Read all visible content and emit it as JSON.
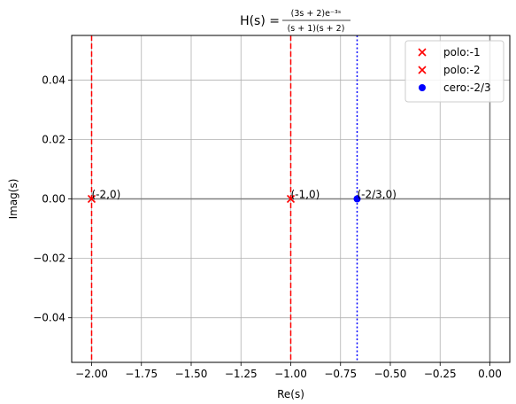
{
  "chart_data": {
    "type": "scatter",
    "title_prefix": "H(s) = ",
    "title_numerator": "(3s + 2)e⁻³ˢ",
    "title_denominator": "(s + 1)(s + 2)",
    "xlabel": "Re(s)",
    "ylabel": "Imag(s)",
    "xlim": [
      -2.1,
      0.1
    ],
    "ylim": [
      -0.055,
      0.055
    ],
    "xticks": [
      -2.0,
      -1.75,
      -1.5,
      -1.25,
      -1.0,
      -0.75,
      -0.5,
      -0.25,
      0.0
    ],
    "xtick_labels": [
      "−2.00",
      "−1.75",
      "−1.50",
      "−1.25",
      "−1.00",
      "−0.75",
      "−0.50",
      "−0.25",
      "0.00"
    ],
    "yticks": [
      0.04,
      0.02,
      0.0,
      -0.02,
      -0.04
    ],
    "ytick_labels": [
      "0.04",
      "0.02",
      "0.00",
      "−0.02",
      "−0.04"
    ],
    "grid": true,
    "legend_position": "top-right",
    "series": [
      {
        "name": "polo:-1",
        "marker": "x",
        "color": "#ff0000",
        "points": [
          {
            "x": -1.0,
            "y": 0.0
          }
        ]
      },
      {
        "name": "polo:-2",
        "marker": "x",
        "color": "#ff0000",
        "points": [
          {
            "x": -2.0,
            "y": 0.0
          }
        ]
      },
      {
        "name": "cero:-2/3",
        "marker": "o",
        "color": "#0000ff",
        "points": [
          {
            "x": -0.6667,
            "y": 0.0
          }
        ]
      }
    ],
    "vertical_lines": [
      {
        "x": -2.0,
        "color": "#ff0000",
        "style": "dashed"
      },
      {
        "x": -1.0,
        "color": "#ff0000",
        "style": "dashed"
      },
      {
        "x": -0.6667,
        "color": "#0000ff",
        "style": "dotted"
      },
      {
        "x": 0.0,
        "color": "#808080",
        "style": "solid"
      }
    ],
    "horizontal_lines": [
      {
        "y": 0.0,
        "color": "#808080",
        "style": "solid"
      }
    ],
    "annotations": [
      {
        "text": "(-2,0)",
        "x": -2.0,
        "y": 0.0
      },
      {
        "text": "(-1,0)",
        "x": -1.0,
        "y": 0.0
      },
      {
        "text": "(-2/3,0)",
        "x": -0.6667,
        "y": 0.0
      }
    ]
  }
}
